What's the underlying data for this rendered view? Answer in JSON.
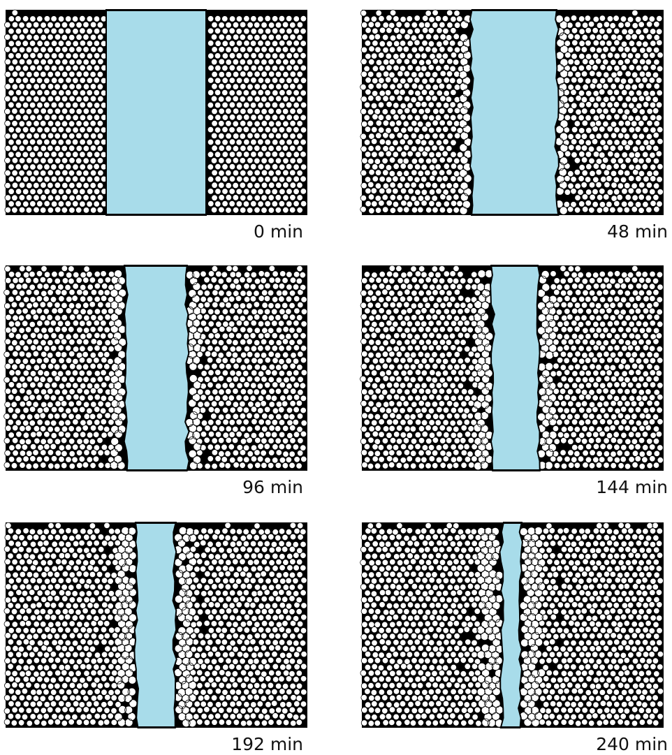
{
  "panels": [
    {
      "label": "0 min"
    },
    {
      "label": "48 min"
    },
    {
      "label": "96 min"
    },
    {
      "label": "144 min"
    },
    {
      "label": "192 min"
    },
    {
      "label": "240 min"
    }
  ]
}
